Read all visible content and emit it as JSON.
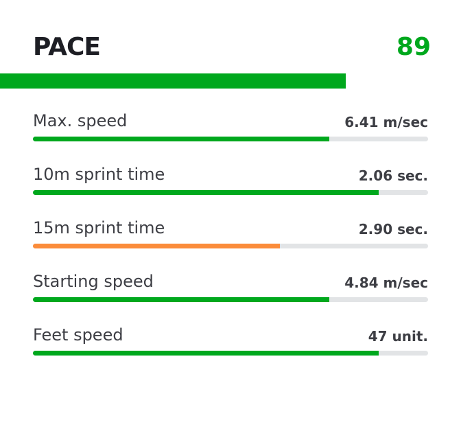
{
  "header": {
    "title": "PACE",
    "score": "89",
    "score_fraction": 0.75,
    "color": "#00a81d"
  },
  "metrics": [
    {
      "label": "Max. speed",
      "value": "6.41 m/sec",
      "fraction": 0.75,
      "color": "#00a81d"
    },
    {
      "label": "10m sprint time",
      "value": "2.06 sec.",
      "fraction": 0.875,
      "color": "#00a81d"
    },
    {
      "label": "15m sprint time",
      "value": "2.90 sec.",
      "fraction": 0.625,
      "color": "#fb8c3a"
    },
    {
      "label": "Starting speed",
      "value": "4.84 m/sec",
      "fraction": 0.75,
      "color": "#00a81d"
    },
    {
      "label": "Feet speed",
      "value": "47 unit.",
      "fraction": 0.875,
      "color": "#00a81d"
    }
  ]
}
